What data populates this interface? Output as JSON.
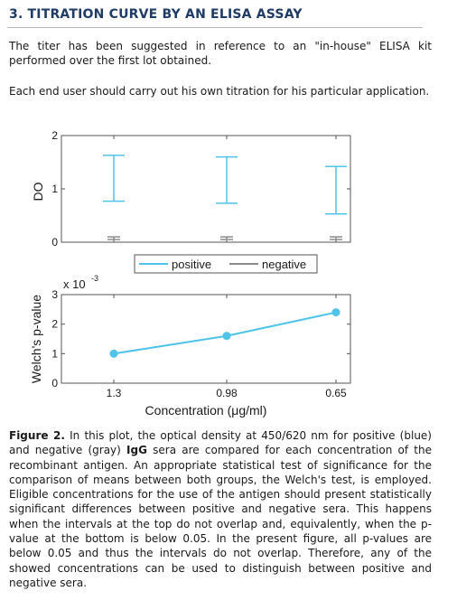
{
  "section": {
    "title": "3. TITRATION CURVE BY AN ELISA ASSAY"
  },
  "paragraphs": {
    "p1": "The titer has been suggested in reference to an \"in-house\" ELISA kit performed over the first lot obtained.",
    "p2": "Each end user should carry out his own titration for his particular application."
  },
  "colors": {
    "positive": "#4fc3e8",
    "negative": "#8c8c8c",
    "title": "#1f3b66"
  },
  "chart_data": [
    {
      "type": "errorbar",
      "ylabel": "DO",
      "ylim": [
        0,
        2
      ],
      "yticks": [
        "0",
        "1",
        "2"
      ],
      "categories": [
        "1.3",
        "0.98",
        "0.65"
      ],
      "series": [
        {
          "name": "positive",
          "color": "#4fc3e8",
          "low": [
            0.77,
            0.73,
            0.53
          ],
          "high": [
            1.63,
            1.6,
            1.42
          ]
        },
        {
          "name": "negative",
          "color": "#8c8c8c",
          "low": [
            0.05,
            0.05,
            0.05
          ],
          "high": [
            0.1,
            0.1,
            0.1
          ]
        }
      ],
      "legend": [
        "positive",
        "negative"
      ],
      "legend_position": "below"
    },
    {
      "type": "line",
      "ylabel": "Welch's p-value",
      "ylim": [
        0,
        3
      ],
      "yticks": [
        "0",
        "1",
        "2",
        "3"
      ],
      "y_exponent_base": "x 10",
      "y_exponent_power": "-3",
      "xlabel": "Concentration (μg/ml)",
      "categories": [
        "1.3",
        "0.98",
        "0.65"
      ],
      "series": [
        {
          "name": "p-value",
          "color": "#4fc3e8",
          "values": [
            1.0,
            1.6,
            2.4
          ]
        }
      ]
    }
  ],
  "caption": {
    "label": "Figure 2.",
    "t1": " In this plot, the optical density at 450/620 nm for positive (blue) and negative (gray) ",
    "bold": "IgG",
    "t2": " sera are compared for each concentration of the recombinant antigen. An appropriate statistical test of significance for the comparison of means between both groups, the Welch's test, is employed. Eligible concentrations for the use of the antigen should present statistically significant differences between positive and negative sera. This happens when the intervals at the top do not overlap and, equivalently, when the p-value at the bottom is below 0.05. In the present figure, all p-values are below 0.05 and thus the intervals do not overlap. Therefore, any of the showed concentrations can be used to distinguish between positive and negative sera."
  }
}
